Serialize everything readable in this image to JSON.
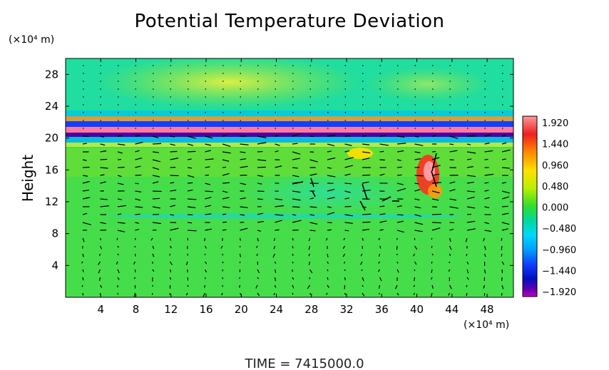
{
  "chart_data": {
    "type": "heatmap",
    "title": "Potential Temperature Deviation",
    "ylabel": "Height",
    "y_unit": "(×10⁴ m)",
    "x_unit": "(×10⁴ m)",
    "xlim": [
      0,
      51
    ],
    "ylim": [
      0,
      30
    ],
    "x_ticks": [
      4,
      8,
      12,
      16,
      20,
      24,
      28,
      32,
      36,
      40,
      44,
      48
    ],
    "x_tick_labels": [
      "4",
      "8",
      "12",
      "16",
      "20",
      "24",
      "28",
      "32",
      "36",
      "40",
      "44",
      "48"
    ],
    "y_ticks": [
      4,
      8,
      12,
      16,
      20,
      24,
      28
    ],
    "y_tick_labels": [
      "4",
      "8",
      "12",
      "16",
      "20",
      "24",
      "28"
    ],
    "colorbar": {
      "min": -1.92,
      "max": 1.92,
      "labels": [
        "1.920",
        "1.440",
        "0.960",
        "0.480",
        "0.000",
        "−0.480",
        "−0.960",
        "−1.440",
        "−1.920"
      ],
      "colors": [
        "#ff8a8a",
        "#ee2020",
        "#ff8800",
        "#ffe000",
        "#c0f000",
        "#30dd30",
        "#00d8a0",
        "#00d8ff",
        "#00a0ff",
        "#1040ff",
        "#0010c0",
        "#6000b0",
        "#c000c0"
      ]
    },
    "background_anomaly": 0.3,
    "vectors": "wind arrows over the field",
    "footer": "TIME  =  7415000.0"
  }
}
